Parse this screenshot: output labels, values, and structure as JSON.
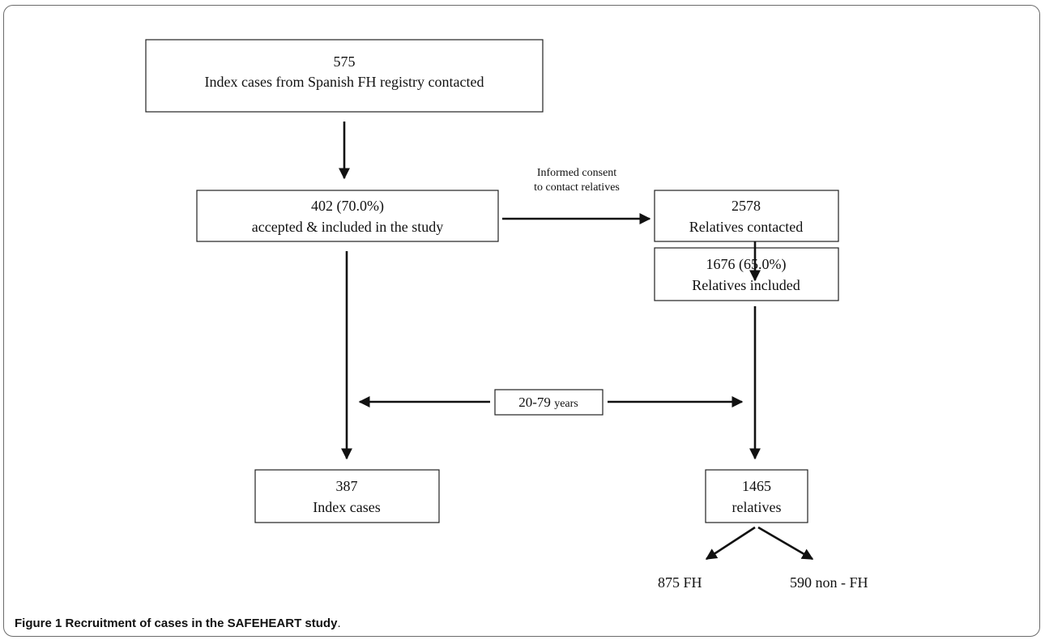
{
  "boxes": {
    "index_contacted": {
      "count": "575",
      "text": "Index cases from Spanish FH registry contacted"
    },
    "accepted": {
      "count": "402 (70.0%)",
      "text": "accepted & included in the study"
    },
    "relatives_contacted": {
      "count": "2578",
      "text": "Relatives contacted"
    },
    "relatives_included": {
      "count": "1676 (65.0%)",
      "text": "Relatives included"
    },
    "age_filter": {
      "text": "20-79",
      "unit": "years"
    },
    "index_cases": {
      "count": "387",
      "text": "Index cases"
    },
    "relatives_final": {
      "count": "1465",
      "text": "relatives"
    }
  },
  "labels": {
    "consent_line1": "Informed  consent",
    "consent_line2": "to contact relatives",
    "fh": "875 FH",
    "non_fh": "590 non - FH"
  },
  "caption": {
    "label": "Figure 1",
    "title": "Recruitment of cases in the SAFEHEART study",
    "end": "."
  }
}
